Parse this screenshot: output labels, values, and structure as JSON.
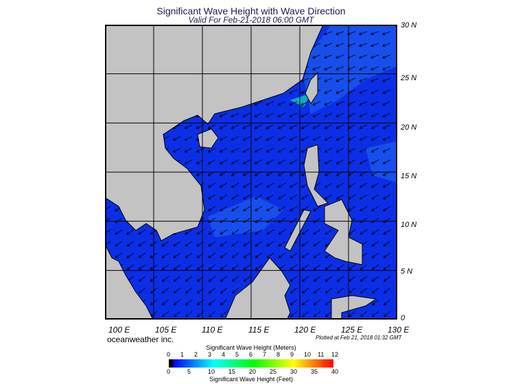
{
  "header": {
    "title": "Significant Wave Height with Wave Direction",
    "subtitle": "Valid For Feb-21-2018 06:00 GMT"
  },
  "map": {
    "lon_range": [
      100,
      130
    ],
    "lat_range": [
      0,
      30
    ],
    "lon_labels": [
      "100 E",
      "105 E",
      "110 E",
      "115 E",
      "120 E",
      "125 E",
      "130 E"
    ],
    "lat_labels": [
      "30 N",
      "25 N",
      "20 N",
      "15 N",
      "10 N",
      "5 N",
      "0"
    ],
    "colors": {
      "land": "#c3c3c3",
      "ocean": "#0b2fe6",
      "ocean_light": "#1e6af0",
      "border": "#000000"
    }
  },
  "footer": {
    "credit": "oceanweather inc.",
    "plotted": "Plotted at Feb 21, 2018 01:32 GMT"
  },
  "legend": {
    "meters_title": "Significant Wave Height (Meters)",
    "meters_ticks": [
      "0",
      "1",
      "2",
      "3",
      "4",
      "5",
      "6",
      "7",
      "8",
      "9",
      "10",
      "11",
      "12"
    ],
    "feet_ticks": [
      "0",
      "5",
      "10",
      "15",
      "20",
      "25",
      "30",
      "35",
      "40"
    ],
    "feet_title": "Significant Wave Height (Feet)",
    "colors": [
      "#000000",
      "#0000ff",
      "#0080ff",
      "#00ffff",
      "#00ff80",
      "#00ff00",
      "#80ff00",
      "#ffff00",
      "#ff8000",
      "#ff0000"
    ]
  }
}
